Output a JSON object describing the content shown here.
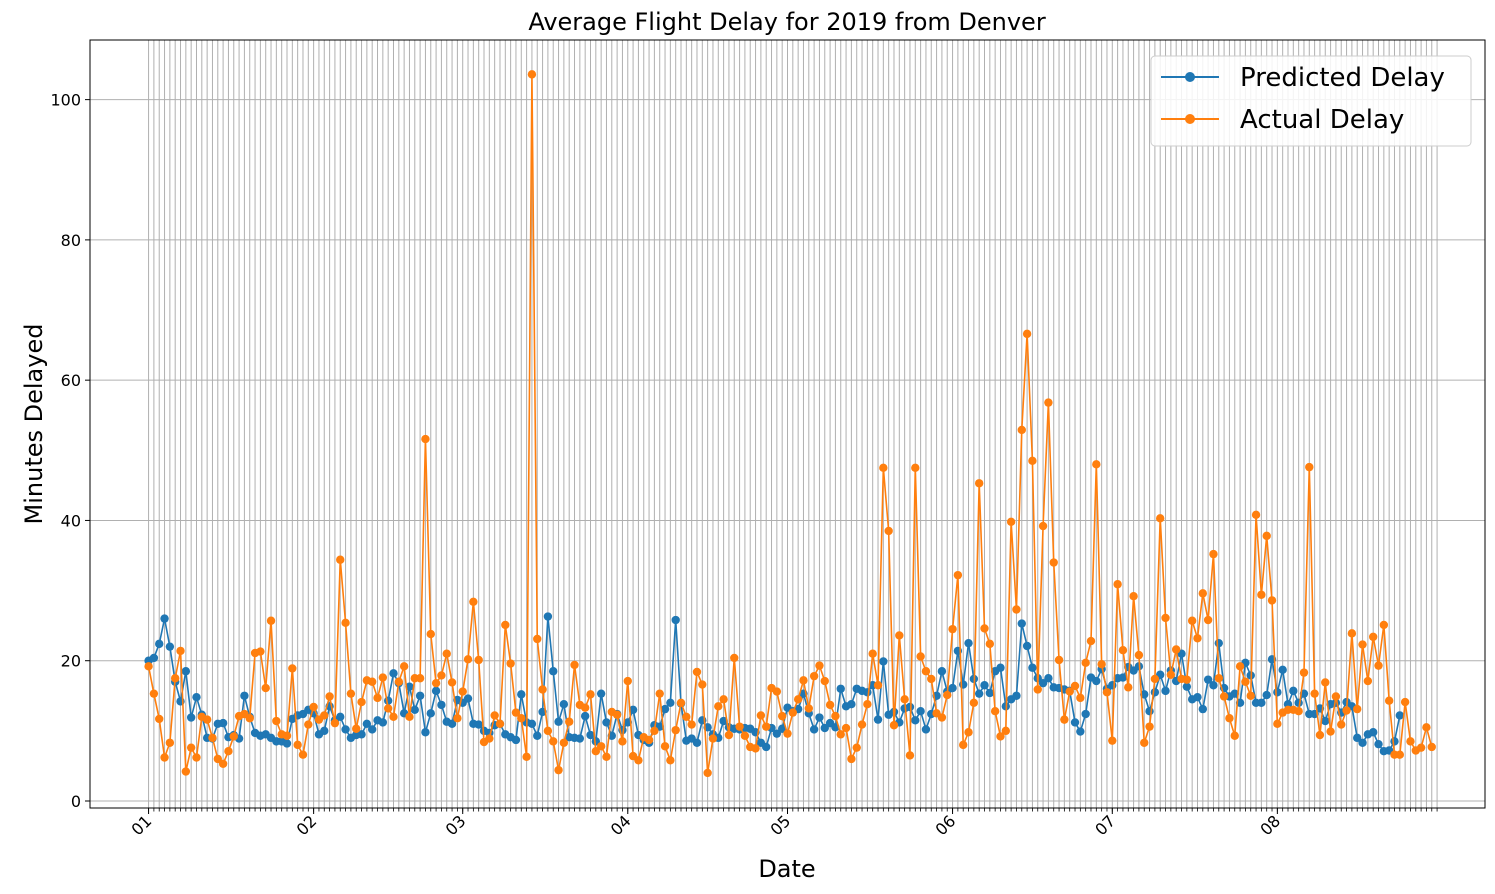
{
  "chart_data": {
    "type": "line",
    "title": "Average Flight Delay for 2019 from Denver",
    "xlabel": "Date",
    "ylabel": "Minutes Delayed",
    "x_start": "2019-01-01",
    "x_end": "2019-08-31",
    "xlim": [
      "2018-12-21",
      "2019-09-09"
    ],
    "ylim": [
      -1,
      108.5
    ],
    "yticks": [
      0,
      20,
      40,
      60,
      80,
      100
    ],
    "xtick_labels": [
      {
        "date": "2019-01-01",
        "label": "01"
      },
      {
        "date": "2019-02-01",
        "label": "02"
      },
      {
        "date": "2019-03-01",
        "label": "03"
      },
      {
        "date": "2019-04-01",
        "label": "04"
      },
      {
        "date": "2019-05-01",
        "label": "05"
      },
      {
        "date": "2019-06-01",
        "label": "06"
      },
      {
        "date": "2019-07-01",
        "label": "07"
      },
      {
        "date": "2019-08-01",
        "label": "08"
      }
    ],
    "grid": true,
    "legend_position": "upper-right",
    "series": [
      {
        "name": "Predicted Delay",
        "color": "#1f77b4",
        "values": [
          20.0,
          20.4,
          22.4,
          26.0,
          22.0,
          17.0,
          14.2,
          18.5,
          11.9,
          14.8,
          12.3,
          9.0,
          8.9,
          11.0,
          11.1,
          9.1,
          9.4,
          8.9,
          15.0,
          12.0,
          9.7,
          9.3,
          9.5,
          9.0,
          8.5,
          8.5,
          8.2,
          11.7,
          12.2,
          12.4,
          13.0,
          12.5,
          9.5,
          10.0,
          13.5,
          11.5,
          12.0,
          10.2,
          9.0,
          9.4,
          9.5,
          11.0,
          10.2,
          11.5,
          11.2,
          14.3,
          18.2,
          16.8,
          12.5,
          16.3,
          13.0,
          15.0,
          9.8,
          12.5,
          15.7,
          13.7,
          11.3,
          11.0,
          14.4,
          14.0,
          14.6,
          11.0,
          10.9,
          10.0,
          9.7,
          10.8,
          11.0,
          9.5,
          9.1,
          8.7,
          15.2,
          11.2,
          11.0,
          9.3,
          12.7,
          26.3,
          18.5,
          11.3,
          13.8,
          9.1,
          9.0,
          8.9,
          12.1,
          9.4,
          8.5,
          15.3,
          11.2,
          9.3,
          12.4,
          10.1,
          11.2,
          13.0,
          9.4,
          8.7,
          8.3,
          10.8,
          10.6,
          13.1,
          14.0,
          25.8,
          13.9,
          8.6,
          8.9,
          8.3,
          11.5,
          10.5,
          9.5,
          9.0,
          11.4,
          10.5,
          10.3,
          10.2,
          10.4,
          10.3,
          9.8,
          8.3,
          7.7,
          10.4,
          9.6,
          10.3,
          13.3,
          12.8,
          13.1,
          15.3,
          12.5,
          10.2,
          11.9,
          10.4,
          11.1,
          10.5,
          16.0,
          13.5,
          13.8,
          16.0,
          15.7,
          15.5,
          16.5,
          11.6,
          19.9,
          12.3,
          12.7,
          11.2,
          13.2,
          13.4,
          11.5,
          12.8,
          10.2,
          12.4,
          15.0,
          18.5,
          15.6,
          16.1,
          21.4,
          16.6,
          22.5,
          17.4,
          15.3,
          16.5,
          15.4,
          18.5,
          19.0,
          13.5,
          14.5,
          15.0,
          25.3,
          22.1,
          19.0,
          17.5,
          16.8,
          17.5,
          16.2,
          16.1,
          15.9,
          15.7,
          11.2,
          9.9,
          12.4,
          17.6,
          17.1,
          18.8,
          16.0,
          16.5,
          17.5,
          17.6,
          19.1,
          18.6,
          19.2,
          15.2,
          12.8,
          15.5,
          18.0,
          15.7,
          18.6,
          17.1,
          21.0,
          16.3,
          14.5,
          14.8,
          13.1,
          17.3,
          16.5,
          22.5,
          16.1,
          14.9,
          15.3,
          14.0,
          19.7,
          17.9,
          14.0,
          14.0,
          15.1,
          20.2,
          15.5,
          18.7,
          13.8,
          15.7,
          14.0,
          15.3,
          12.4,
          12.4,
          13.2,
          11.4,
          13.8,
          14.0,
          12.6,
          14.1,
          13.5,
          9.0,
          8.3,
          9.5,
          9.8,
          8.1,
          7.1,
          7.2,
          8.5,
          12.2
        ]
      },
      {
        "name": "Actual Delay",
        "color": "#ff7f0e",
        "values": [
          19.2,
          15.3,
          11.7,
          6.2,
          8.3,
          17.5,
          21.4,
          4.2,
          7.6,
          6.2,
          12.0,
          11.6,
          9.0,
          6.0,
          5.3,
          7.1,
          9.2,
          12.1,
          12.4,
          11.8,
          21.1,
          21.3,
          16.1,
          25.7,
          11.4,
          9.5,
          9.3,
          18.9,
          8.0,
          6.6,
          10.9,
          13.4,
          11.6,
          12.2,
          14.9,
          11.1,
          34.4,
          25.4,
          15.3,
          10.3,
          14.1,
          17.2,
          17.0,
          14.7,
          17.6,
          13.2,
          12.0,
          17.0,
          19.2,
          12.0,
          17.5,
          17.5,
          51.6,
          23.8,
          16.8,
          17.9,
          21.0,
          16.9,
          11.8,
          15.6,
          20.2,
          28.4,
          20.1,
          8.4,
          8.9,
          12.2,
          11.0,
          25.1,
          19.6,
          12.6,
          11.8,
          6.3,
          103.6,
          23.1,
          15.9,
          10.0,
          8.5,
          4.4,
          8.3,
          11.3,
          19.4,
          13.7,
          13.3,
          15.2,
          7.1,
          7.8,
          6.3,
          12.7,
          12.3,
          8.5,
          17.1,
          6.4,
          5.8,
          9.1,
          8.7,
          10.0,
          15.3,
          7.8,
          5.8,
          10.1,
          14.0,
          12.0,
          10.9,
          18.4,
          16.6,
          4.0,
          8.9,
          13.5,
          14.5,
          9.4,
          20.4,
          10.6,
          9.3,
          7.7,
          7.5,
          12.2,
          10.6,
          16.1,
          15.6,
          12.1,
          9.6,
          12.6,
          14.5,
          17.2,
          13.2,
          17.8,
          19.3,
          17.1,
          13.7,
          12.1,
          9.5,
          10.4,
          6.0,
          7.6,
          10.9,
          13.8,
          21.0,
          16.5,
          47.5,
          38.5,
          10.8,
          23.6,
          14.5,
          6.5,
          47.5,
          20.6,
          18.5,
          17.4,
          12.5,
          11.9,
          15.1,
          24.5,
          32.2,
          8.0,
          9.8,
          14.0,
          45.3,
          24.6,
          22.4,
          12.8,
          9.2,
          10.0,
          39.8,
          27.3,
          52.9,
          66.6,
          48.5,
          15.9,
          39.2,
          56.8,
          34.0,
          20.1,
          11.6,
          15.6,
          16.4,
          14.7,
          19.7,
          22.8,
          48.0,
          19.5,
          15.5,
          8.6,
          30.9,
          21.5,
          16.2,
          29.2,
          20.8,
          8.3,
          10.6,
          17.4,
          40.3,
          26.1,
          18.0,
          21.6,
          17.4,
          17.3,
          25.7,
          23.2,
          29.6,
          25.8,
          35.2,
          17.5,
          14.9,
          11.8,
          9.3,
          19.2,
          17.0,
          15.0,
          40.8,
          29.4,
          37.8,
          28.6,
          11.0,
          12.6,
          13.0,
          13.0,
          12.8,
          18.3,
          47.6,
          15.3,
          9.4,
          16.9,
          9.9,
          14.9,
          10.9,
          12.9,
          23.9,
          13.1,
          22.3,
          17.1,
          23.4,
          19.3,
          25.1,
          14.3,
          6.6,
          6.6,
          14.1,
          8.5,
          7.2,
          7.6,
          10.5,
          7.7
        ]
      }
    ]
  }
}
